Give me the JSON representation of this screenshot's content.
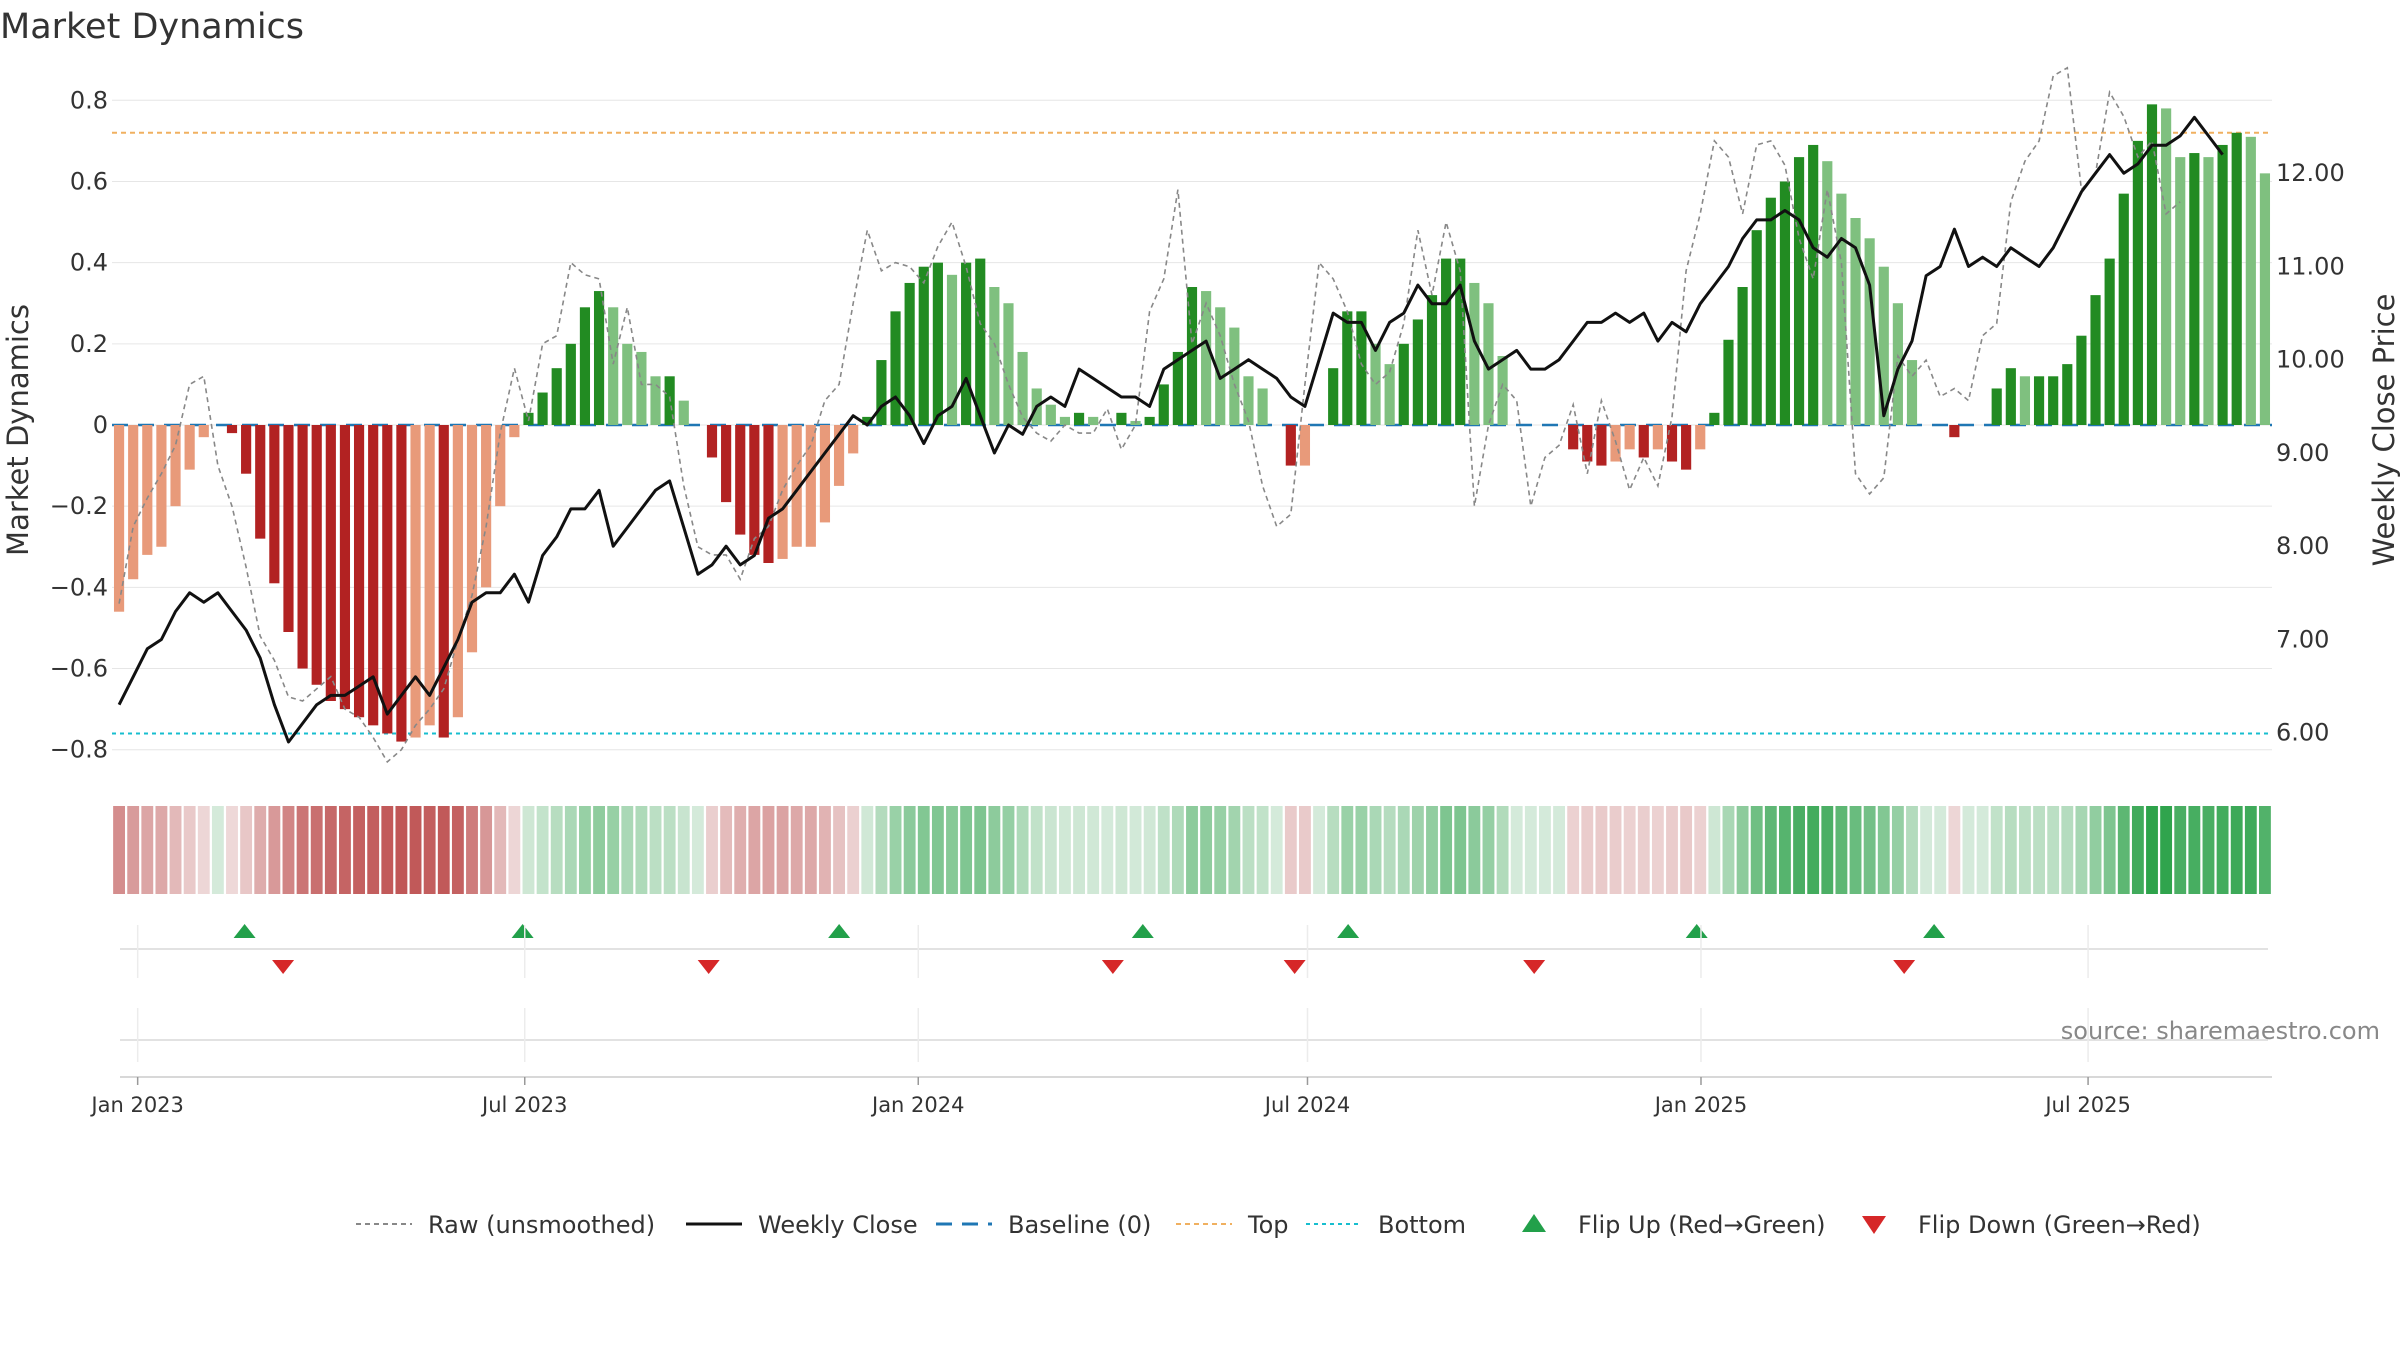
{
  "chart_data": {
    "type": "bar",
    "title": "Market Dynamics",
    "ylabel_left": "Market Dynamics",
    "ylabel_right": "Weekly Close Price",
    "ylim_left": [
      -0.85,
      0.85
    ],
    "ylim_right": [
      5.6,
      13.0
    ],
    "left_ticks": [
      "0.8",
      "0.6",
      "0.4",
      "0.2",
      "0",
      "−0.2",
      "−0.4",
      "−0.6",
      "−0.8"
    ],
    "right_ticks": [
      "12.00",
      "11.00",
      "10.00",
      "9.00",
      "8.00",
      "7.00",
      "6.00"
    ],
    "x_ticks": [
      "Jan 2023",
      "Jul 2023",
      "Jan 2024",
      "Jul 2024",
      "Jan 2025",
      "Jul 2025"
    ],
    "x_start": "2022-12-20",
    "x_end": "2025-09-25",
    "top_level": 0.72,
    "bottom_level": -0.76,
    "baseline": 0,
    "colors": {
      "strong_green": "#228b22",
      "weak_green": "#7fc07f",
      "strong_red": "#b22222",
      "weak_red": "#e89a7a",
      "close_line": "#111111",
      "raw_line": "#888888",
      "baseline": "#1f77b4",
      "top": "#f0b060",
      "bottom": "#17becf",
      "flip_up": "#22a04a",
      "flip_down": "#d62728"
    },
    "series": [
      {
        "name": "Market Dynamics",
        "values": [
          -0.46,
          -0.38,
          -0.32,
          -0.3,
          -0.2,
          -0.11,
          -0.03,
          0,
          -0.02,
          -0.12,
          -0.28,
          -0.39,
          -0.51,
          -0.6,
          -0.64,
          -0.68,
          -0.7,
          -0.72,
          -0.74,
          -0.76,
          -0.78,
          -0.77,
          -0.74,
          -0.77,
          -0.72,
          -0.56,
          -0.4,
          -0.2,
          -0.03,
          0.03,
          0.08,
          0.14,
          0.2,
          0.29,
          0.33,
          0.29,
          0.2,
          0.18,
          0.12,
          0.12,
          0.06,
          0,
          -0.08,
          -0.19,
          -0.27,
          -0.32,
          -0.34,
          -0.33,
          -0.3,
          -0.3,
          -0.24,
          -0.15,
          -0.07,
          0.02,
          0.16,
          0.28,
          0.35,
          0.39,
          0.4,
          0.37,
          0.4,
          0.41,
          0.34,
          0.3,
          0.18,
          0.09,
          0.05,
          0.02,
          0.03,
          0.02,
          0,
          0.03,
          0.01,
          0.02,
          0.1,
          0.18,
          0.34,
          0.33,
          0.29,
          0.24,
          0.12,
          0.09,
          0,
          -0.1,
          -0.1,
          0,
          0.14,
          0.28,
          0.28,
          0.2,
          0.15,
          0.2,
          0.26,
          0.32,
          0.41,
          0.41,
          0.35,
          0.3,
          0.17,
          0,
          0,
          0,
          0,
          -0.06,
          -0.09,
          -0.1,
          -0.09,
          -0.06,
          -0.08,
          -0.06,
          -0.09,
          -0.11,
          -0.06,
          0.03,
          0.21,
          0.34,
          0.48,
          0.56,
          0.6,
          0.66,
          0.69,
          0.65,
          0.57,
          0.51,
          0.46,
          0.39,
          0.3,
          0.16,
          0,
          0,
          -0.03,
          0,
          0,
          0.09,
          0.14,
          0.12,
          0.12,
          0.12,
          0.15,
          0.22,
          0.32,
          0.41,
          0.57,
          0.7,
          0.79,
          0.78,
          0.66,
          0.67,
          0.66,
          0.69,
          0.72,
          0.71,
          0.62
        ]
      },
      {
        "name": "Weekly Close",
        "values": [
          6.3,
          6.6,
          6.9,
          7.0,
          7.3,
          7.5,
          7.4,
          7.5,
          7.3,
          7.1,
          6.8,
          6.3,
          5.9,
          6.1,
          6.3,
          6.4,
          6.4,
          6.5,
          6.6,
          6.2,
          6.4,
          6.6,
          6.4,
          6.7,
          7.0,
          7.4,
          7.5,
          7.5,
          7.7,
          7.4,
          7.9,
          8.1,
          8.4,
          8.4,
          8.6,
          8.0,
          8.2,
          8.4,
          8.6,
          8.7,
          8.2,
          7.7,
          7.8,
          8.0,
          7.8,
          7.9,
          8.3,
          8.4,
          8.6,
          8.8,
          9.0,
          9.2,
          9.4,
          9.3,
          9.5,
          9.6,
          9.4,
          9.1,
          9.4,
          9.5,
          9.8,
          9.4,
          9.0,
          9.3,
          9.2,
          9.5,
          9.6,
          9.5,
          9.9,
          9.8,
          9.7,
          9.6,
          9.6,
          9.5,
          9.9,
          10.0,
          10.1,
          10.2,
          9.8,
          9.9,
          10.0,
          9.9,
          9.8,
          9.6,
          9.5,
          10.0,
          10.5,
          10.4,
          10.4,
          10.1,
          10.4,
          10.5,
          10.8,
          10.6,
          10.6,
          10.8,
          10.2,
          9.9,
          10.0,
          10.1,
          9.9,
          9.9,
          10.0,
          10.2,
          10.4,
          10.4,
          10.5,
          10.4,
          10.5,
          10.2,
          10.4,
          10.3,
          10.6,
          10.8,
          11.0,
          11.3,
          11.5,
          11.5,
          11.6,
          11.5,
          11.2,
          11.1,
          11.3,
          11.2,
          10.8,
          9.4,
          9.9,
          10.2,
          10.9,
          11.0,
          11.4,
          11.0,
          11.1,
          11.0,
          11.2,
          11.1,
          11.0,
          11.2,
          11.5,
          11.8,
          12.0,
          12.2,
          12.0,
          12.1,
          12.3,
          12.3,
          12.4,
          12.6,
          12.4,
          12.2
        ]
      },
      {
        "name": "Raw (unsmoothed)",
        "values": [
          -0.44,
          -0.25,
          -0.18,
          -0.12,
          -0.05,
          0.1,
          0.12,
          -0.1,
          -0.2,
          -0.35,
          -0.52,
          -0.58,
          -0.67,
          -0.68,
          -0.65,
          -0.62,
          -0.7,
          -0.72,
          -0.77,
          -0.83,
          -0.8,
          -0.74,
          -0.7,
          -0.65,
          -0.53,
          -0.42,
          -0.25,
          -0.02,
          0.14,
          0.01,
          0.2,
          0.22,
          0.4,
          0.37,
          0.36,
          0.15,
          0.29,
          0.1,
          0.1,
          0.07,
          -0.15,
          -0.3,
          -0.32,
          -0.32,
          -0.38,
          -0.28,
          -0.25,
          -0.16,
          -0.1,
          -0.05,
          0.06,
          0.1,
          0.3,
          0.48,
          0.38,
          0.4,
          0.39,
          0.35,
          0.44,
          0.5,
          0.39,
          0.25,
          0.2,
          0.1,
          0.02,
          -0.02,
          -0.04,
          0.0,
          -0.02,
          -0.02,
          0.04,
          -0.06,
          0.0,
          0.28,
          0.36,
          0.58,
          0.2,
          0.3,
          0.22,
          0.1,
          0.01,
          -0.15,
          -0.25,
          -0.22,
          0.1,
          0.4,
          0.36,
          0.28,
          0.15,
          0.1,
          0.13,
          0.25,
          0.48,
          0.32,
          0.5,
          0.38,
          -0.2,
          0.0,
          0.1,
          0.06,
          -0.2,
          -0.08,
          -0.05,
          0.05,
          -0.12,
          0.06,
          -0.04,
          -0.16,
          -0.08,
          -0.15,
          0.02,
          0.38,
          0.52,
          0.7,
          0.66,
          0.52,
          0.69,
          0.7,
          0.64,
          0.46,
          0.36,
          0.58,
          0.4,
          -0.12,
          -0.17,
          -0.13,
          0.17,
          0.12,
          0.16,
          0.07,
          0.09,
          0.06,
          0.22,
          0.25,
          0.55,
          0.65,
          0.7,
          0.86,
          0.88,
          0.58,
          0.62,
          0.82,
          0.76,
          0.66,
          0.7,
          0.52,
          0.55
        ]
      }
    ],
    "flip_up_x": [
      "2023-02-20",
      "2023-06-30",
      "2023-11-25",
      "2024-04-15",
      "2024-07-20",
      "2024-12-30",
      "2025-04-20"
    ],
    "flip_down_x": [
      "2023-03-10",
      "2023-09-25",
      "2024-04-01",
      "2024-06-25",
      "2024-10-15",
      "2025-04-06"
    ],
    "legend": [
      {
        "label": "Raw (unsmoothed)",
        "style": "raw"
      },
      {
        "label": "Weekly Close",
        "style": "close"
      },
      {
        "label": "Baseline (0)",
        "style": "baseline"
      },
      {
        "label": "Top",
        "style": "top"
      },
      {
        "label": "Bottom",
        "style": "bottom"
      },
      {
        "label": "Flip Up (Red→Green)",
        "style": "up"
      },
      {
        "label": "Flip Down (Green→Red)",
        "style": "down"
      }
    ],
    "legend_position": "bottom-center",
    "source": "source: sharemaestro.com",
    "grid": true
  }
}
